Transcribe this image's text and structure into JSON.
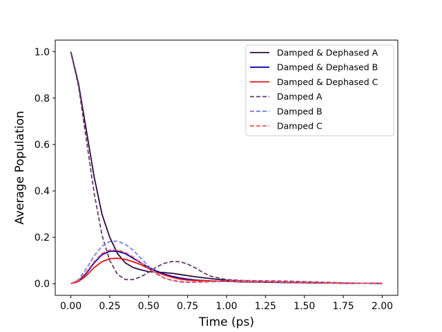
{
  "chart_data": {
    "type": "line",
    "title": "",
    "xlabel": "Time (ps)",
    "ylabel": "Average Population",
    "xlim": [
      -0.1,
      2.1
    ],
    "ylim": [
      -0.05,
      1.05
    ],
    "xticks": [
      0.0,
      0.25,
      0.5,
      0.75,
      1.0,
      1.25,
      1.5,
      1.75,
      2.0
    ],
    "xtick_labels": [
      "0.00",
      "0.25",
      "0.50",
      "0.75",
      "1.00",
      "1.25",
      "1.50",
      "1.75",
      "2.00"
    ],
    "yticks": [
      0.0,
      0.2,
      0.4,
      0.6,
      0.8,
      1.0
    ],
    "ytick_labels": [
      "0.0",
      "0.2",
      "0.4",
      "0.6",
      "0.8",
      "1.0"
    ],
    "grid": false,
    "legend_position": "top-right",
    "series": [
      {
        "name": "Damped & Dephased A",
        "color": "#2b0a3d",
        "dash": "solid",
        "x": [
          0,
          0.05,
          0.1,
          0.15,
          0.2,
          0.25,
          0.3,
          0.35,
          0.4,
          0.45,
          0.5,
          0.55,
          0.6,
          0.65,
          0.7,
          0.75,
          0.8,
          0.9,
          1.0,
          1.1,
          1.2,
          1.3,
          1.4,
          1.5,
          1.6,
          1.7,
          1.8,
          1.9,
          2.0
        ],
        "y": [
          1.0,
          0.86,
          0.66,
          0.46,
          0.3,
          0.2,
          0.13,
          0.09,
          0.07,
          0.06,
          0.052,
          0.05,
          0.048,
          0.045,
          0.04,
          0.035,
          0.03,
          0.022,
          0.015,
          0.012,
          0.01,
          0.008,
          0.006,
          0.005,
          0.004,
          0.003,
          0.002,
          0.002,
          0.001
        ]
      },
      {
        "name": "Damped & Dephased B",
        "color": "#0000b4",
        "dash": "solid",
        "x": [
          0,
          0.05,
          0.1,
          0.15,
          0.2,
          0.25,
          0.3,
          0.35,
          0.4,
          0.45,
          0.5,
          0.55,
          0.6,
          0.65,
          0.7,
          0.75,
          0.8,
          0.9,
          1.0,
          1.1,
          1.2,
          1.3,
          1.4,
          1.5,
          1.6,
          1.7,
          1.8,
          1.9,
          2.0
        ],
        "y": [
          0.0,
          0.012,
          0.045,
          0.09,
          0.125,
          0.14,
          0.14,
          0.13,
          0.11,
          0.09,
          0.07,
          0.055,
          0.042,
          0.032,
          0.025,
          0.02,
          0.016,
          0.012,
          0.01,
          0.008,
          0.007,
          0.006,
          0.005,
          0.004,
          0.003,
          0.003,
          0.002,
          0.002,
          0.001
        ]
      },
      {
        "name": "Damped & Dephased C",
        "color": "#e01010",
        "dash": "solid",
        "x": [
          0,
          0.05,
          0.1,
          0.15,
          0.2,
          0.25,
          0.3,
          0.35,
          0.4,
          0.45,
          0.5,
          0.55,
          0.6,
          0.65,
          0.7,
          0.75,
          0.8,
          0.9,
          1.0,
          1.1,
          1.2,
          1.3,
          1.4,
          1.5,
          1.6,
          1.7,
          1.8,
          1.9,
          2.0
        ],
        "y": [
          0.0,
          0.01,
          0.035,
          0.07,
          0.095,
          0.108,
          0.11,
          0.105,
          0.095,
          0.082,
          0.065,
          0.05,
          0.038,
          0.028,
          0.02,
          0.016,
          0.014,
          0.012,
          0.01,
          0.009,
          0.008,
          0.007,
          0.006,
          0.005,
          0.004,
          0.003,
          0.003,
          0.002,
          0.002
        ]
      },
      {
        "name": "Damped A",
        "color": "#6a3a6a",
        "dash": "dashed",
        "x": [
          0,
          0.05,
          0.1,
          0.15,
          0.2,
          0.25,
          0.3,
          0.35,
          0.4,
          0.45,
          0.5,
          0.55,
          0.6,
          0.65,
          0.7,
          0.75,
          0.8,
          0.85,
          0.9,
          1.0,
          1.1,
          1.2,
          1.3,
          1.4,
          1.5,
          1.6,
          1.7,
          1.8,
          1.9,
          2.0
        ],
        "y": [
          1.0,
          0.85,
          0.62,
          0.39,
          0.21,
          0.1,
          0.04,
          0.018,
          0.018,
          0.03,
          0.05,
          0.072,
          0.088,
          0.096,
          0.095,
          0.085,
          0.068,
          0.048,
          0.032,
          0.018,
          0.014,
          0.013,
          0.012,
          0.011,
          0.009,
          0.007,
          0.005,
          0.003,
          0.002,
          0.001
        ]
      },
      {
        "name": "Damped B",
        "color": "#7a7ae8",
        "dash": "dashed",
        "x": [
          0,
          0.05,
          0.1,
          0.15,
          0.2,
          0.25,
          0.3,
          0.35,
          0.4,
          0.45,
          0.5,
          0.55,
          0.6,
          0.65,
          0.7,
          0.75,
          0.8,
          0.9,
          1.0,
          1.1,
          1.2,
          1.3,
          1.4,
          1.5,
          1.6,
          1.7,
          1.8,
          1.9,
          2.0
        ],
        "y": [
          0.0,
          0.018,
          0.065,
          0.12,
          0.162,
          0.182,
          0.184,
          0.17,
          0.145,
          0.11,
          0.075,
          0.045,
          0.025,
          0.014,
          0.008,
          0.006,
          0.006,
          0.008,
          0.01,
          0.01,
          0.009,
          0.008,
          0.007,
          0.006,
          0.005,
          0.004,
          0.003,
          0.002,
          0.002
        ]
      },
      {
        "name": "Damped C",
        "color": "#ff5050",
        "dash": "dashed",
        "x": [
          0,
          0.05,
          0.1,
          0.15,
          0.2,
          0.25,
          0.3,
          0.35,
          0.4,
          0.45,
          0.5,
          0.55,
          0.6,
          0.65,
          0.7,
          0.75,
          0.8,
          0.9,
          1.0,
          1.1,
          1.2,
          1.3,
          1.4,
          1.5,
          1.6,
          1.7,
          1.8,
          1.9,
          2.0
        ],
        "y": [
          0.0,
          0.014,
          0.05,
          0.095,
          0.13,
          0.145,
          0.145,
          0.135,
          0.115,
          0.09,
          0.065,
          0.042,
          0.025,
          0.015,
          0.01,
          0.008,
          0.008,
          0.01,
          0.012,
          0.012,
          0.011,
          0.01,
          0.008,
          0.007,
          0.005,
          0.004,
          0.003,
          0.002,
          0.002
        ]
      }
    ]
  }
}
